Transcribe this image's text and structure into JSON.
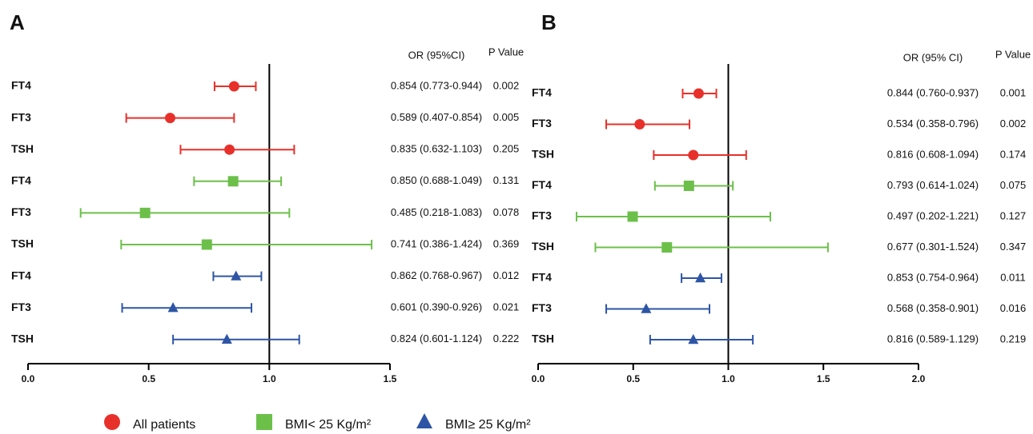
{
  "chart_data": [
    {
      "type": "forest",
      "panel_label": "A",
      "or_header": "OR (95%CI)",
      "p_header": "P Value",
      "xlim": [
        0,
        1.5
      ],
      "xticks": [
        {
          "value": 0,
          "label": "0.0"
        },
        0.5,
        {
          "value": 1,
          "label": "1.0"
        },
        1.5
      ],
      "reference_line": 1,
      "series": [
        {
          "name": "All patients",
          "color": "#e8302a",
          "marker": "circle",
          "categories": [
            "FT4",
            "FT3",
            "TSH"
          ],
          "values": [
            0.854,
            0.589,
            0.835
          ],
          "lower": [
            0.773,
            0.407,
            0.632
          ],
          "upper": [
            0.944,
            0.854,
            1.103
          ],
          "value_labels": [
            "0.854 (0.773-0.944)",
            "0.589 (0.407-0.854)",
            "0.835 (0.632-1.103)"
          ],
          "p_values": [
            0.002,
            0.005,
            0.205
          ]
        },
        {
          "name": "BMI< 25 Kg/m²",
          "color": "#6cc04a",
          "marker": "square",
          "categories": [
            "FT4",
            "FT3",
            "TSH"
          ],
          "values": [
            0.85,
            0.485,
            0.741
          ],
          "lower": [
            0.688,
            0.218,
            0.386
          ],
          "upper": [
            1.049,
            1.083,
            1.424
          ],
          "value_labels": [
            "0.850 (0.688-1.049)",
            "0.485 (0.218-1.083)",
            "0.741 (0.386-1.424)"
          ],
          "p_values": [
            0.131,
            0.078,
            0.369
          ]
        },
        {
          "name": "BMI≥ 25 Kg/m²",
          "color": "#2e55a5",
          "marker": "triangle",
          "categories": [
            "FT4",
            "FT3",
            "TSH"
          ],
          "values": [
            0.862,
            0.601,
            0.824
          ],
          "lower": [
            0.768,
            0.39,
            0.601
          ],
          "upper": [
            0.967,
            0.926,
            1.124
          ],
          "value_labels": [
            "0.862 (0.768-0.967)",
            "0.601 (0.390-0.926)",
            "0.824 (0.601-1.124)"
          ],
          "p_values": [
            0.012,
            0.021,
            0.222
          ]
        }
      ]
    },
    {
      "type": "forest",
      "panel_label": "B",
      "or_header": "OR (95% CI)",
      "p_header": "P Value",
      "xlim": [
        0,
        2
      ],
      "xticks": [
        {
          "value": 0,
          "label": "0.0"
        },
        0.5,
        {
          "value": 1,
          "label": "1.0"
        },
        1.5,
        {
          "value": 2,
          "label": "2.0"
        }
      ],
      "reference_line": 1,
      "series": [
        {
          "color": "#e8302a",
          "marker": "circle",
          "categories": [
            "FT4",
            "FT3",
            "TSH"
          ],
          "values": [
            0.844,
            0.534,
            0.816
          ],
          "lower": [
            0.76,
            0.358,
            0.608
          ],
          "upper": [
            0.937,
            0.796,
            1.094
          ],
          "value_labels": [
            "0.844 (0.760-0.937)",
            "0.534 (0.358-0.796)",
            "0.816 (0.608-1.094)"
          ],
          "p_values": [
            0.001,
            0.002,
            0.174
          ]
        },
        {
          "color": "#6cc04a",
          "marker": "square",
          "categories": [
            "FT4",
            "FT3",
            "TSH"
          ],
          "values": [
            0.793,
            0.497,
            0.677
          ],
          "lower": [
            0.614,
            0.202,
            0.301
          ],
          "upper": [
            1.024,
            1.221,
            1.524
          ],
          "value_labels": [
            "0.793 (0.614-1.024)",
            "0.497 (0.202-1.221)",
            "0.677 (0.301-1.524)"
          ],
          "p_values": [
            0.075,
            0.127,
            0.347
          ]
        },
        {
          "color": "#2e55a5",
          "marker": "triangle",
          "categories": [
            "FT4",
            "FT3",
            "TSH"
          ],
          "values": [
            0.853,
            0.568,
            0.816
          ],
          "lower": [
            0.754,
            0.358,
            0.589
          ],
          "upper": [
            0.964,
            0.901,
            1.129
          ],
          "value_labels": [
            "0.853 (0.754-0.964)",
            "0.568 (0.358-0.901)",
            "0.816 (0.589-1.129)"
          ],
          "p_values": [
            0.011,
            0.016,
            0.219
          ]
        }
      ]
    }
  ]
}
